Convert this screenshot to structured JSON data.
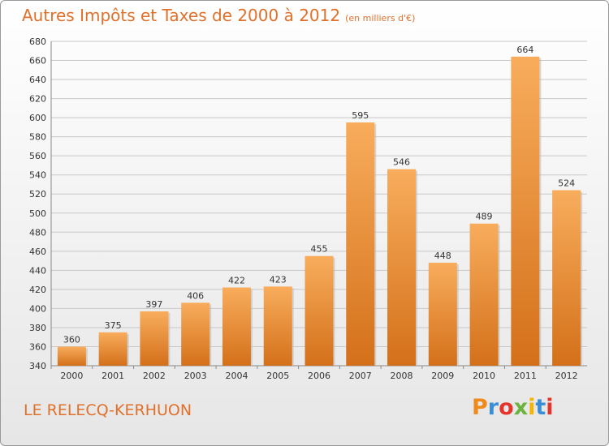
{
  "header": {
    "title": "Autres Impôts et Taxes de 2000 à 2012",
    "unit": "(en milliers d'€)"
  },
  "footer": {
    "place_name": "LE RELECQ-KERHUON",
    "logo_letters": [
      "P",
      "r",
      "o",
      "x",
      "i",
      "t",
      "i"
    ],
    "logo_colors": [
      "#f08a1c",
      "#3a8ed6",
      "#e5352b",
      "#6cb33e",
      "#f5b400",
      "#3a8ed6",
      "#e5352b"
    ]
  },
  "colors": {
    "title": "#e0702a",
    "bar_light": "#f8ad5c",
    "bar_dark": "#d4701a",
    "grid": "#c8c8c8"
  },
  "chart_data": {
    "type": "bar",
    "title": "Autres Impôts et Taxes de 2000 à 2012",
    "categories": [
      "2000",
      "2001",
      "2002",
      "2003",
      "2004",
      "2005",
      "2006",
      "2007",
      "2008",
      "2009",
      "2010",
      "2011",
      "2012"
    ],
    "values": [
      360,
      375,
      397,
      406,
      422,
      423,
      455,
      595,
      546,
      448,
      489,
      664,
      524
    ],
    "ylim": [
      340,
      680
    ],
    "yticks": [
      340,
      360,
      380,
      400,
      420,
      440,
      460,
      480,
      500,
      520,
      540,
      560,
      580,
      600,
      620,
      640,
      660,
      680
    ],
    "grid": true,
    "data_labels": true
  }
}
